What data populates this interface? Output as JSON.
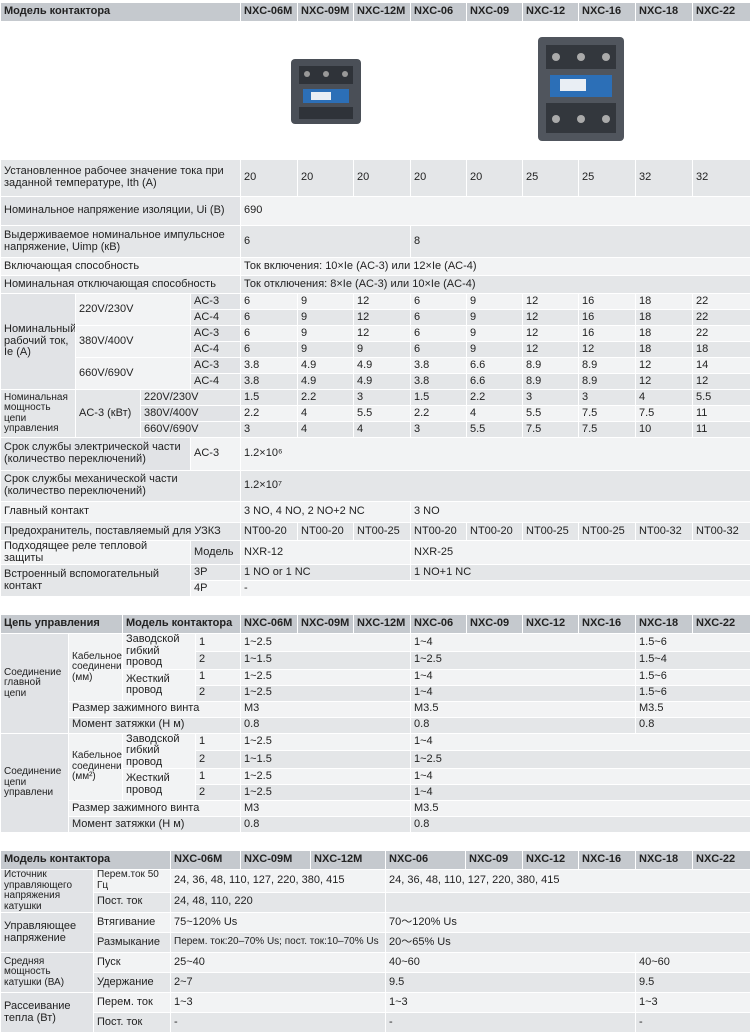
{
  "t1": {
    "header": [
      "Модель контактора",
      "NXC-06M",
      "NXC-09M",
      "NXC-12M",
      "NXC-06",
      "NXC-09",
      "NXC-12",
      "NXC-16",
      "NXC-18",
      "NXC-22"
    ],
    "rows": [
      [
        "Установленное рабочее значение тока при заданной температуре, Ith (A)",
        "20",
        "20",
        "20",
        "20",
        "20",
        "25",
        "25",
        "32",
        "32"
      ],
      [
        "Номинальное напряжение изоляции, Ui (B)",
        "690"
      ],
      [
        "Выдерживаемое номинальное импульсное напряжение, Uimp (кВ)",
        "6",
        "8"
      ],
      [
        "Включающая способность",
        "Ток включения: 10×Ie (AC-3) или 12×Ie (AC-4)"
      ],
      [
        "Номинальная отключающая способность",
        "Ток отключения: 8×Ie (AC-3) или 10×Ie (AC-4)"
      ],
      [
        "Номинальный рабочий ток, Ie (A)",
        "220V/230V",
        "AC-3",
        "6",
        "9",
        "12",
        "6",
        "9",
        "12",
        "16",
        "18",
        "22"
      ],
      [
        "AC-4",
        "6",
        "9",
        "12",
        "6",
        "9",
        "12",
        "16",
        "18",
        "22"
      ],
      [
        "380V/400V",
        "AC-3",
        "6",
        "9",
        "12",
        "6",
        "9",
        "12",
        "16",
        "18",
        "22"
      ],
      [
        "AC-4",
        "6",
        "9",
        "9",
        "6",
        "9",
        "12",
        "12",
        "18",
        "18"
      ],
      [
        "660V/690V",
        "AC-3",
        "3.8",
        "4.9",
        "4.9",
        "3.8",
        "6.6",
        "8.9",
        "8.9",
        "12",
        "14"
      ],
      [
        "AC-4",
        "3.8",
        "4.9",
        "4.9",
        "3.8",
        "6.6",
        "8.9",
        "8.9",
        "12",
        "12"
      ],
      [
        "Номинальная мощность цепи управления",
        "AC-3 (кВт)",
        "220V/230V",
        "1.5",
        "2.2",
        "3",
        "1.5",
        "2.2",
        "3",
        "3",
        "4",
        "5.5"
      ],
      [
        "380V/400V",
        "2.2",
        "4",
        "5.5",
        "2.2",
        "4",
        "5.5",
        "7.5",
        "7.5",
        "11"
      ],
      [
        "660V/690V",
        "3",
        "4",
        "4",
        "3",
        "5.5",
        "7.5",
        "7.5",
        "10",
        "11"
      ],
      [
        "Срок службы электрической части (количество переключений)",
        "AC-3",
        "1.2×10⁶"
      ],
      [
        "Срок службы механической части (количество переключений)",
        "1.2×10⁷"
      ],
      [
        "Главный контакт",
        "3 NO, 4 NO, 2 NO+2 NC",
        "3 NO"
      ],
      [
        "Предохранитель, поставляемый для УЗКЗ",
        "NT00-20",
        "NT00-20",
        "NT00-25",
        "NT00-20",
        "NT00-20",
        "NT00-25",
        "NT00-25",
        "NT00-32",
        "NT00-32"
      ],
      [
        "Подходящее реле тепловой защиты",
        "Модель",
        "NXR-12",
        "NXR-25"
      ],
      [
        "Встроенный вспомогательный контакт",
        "3P",
        "1 NO or 1 NC",
        "1 NO+1 NC"
      ],
      [
        "4P",
        "-"
      ]
    ]
  },
  "t2": {
    "header": [
      "Цепь управления",
      "Модель контактора",
      "NXC-06M",
      "NXC-09M",
      "NXC-12M",
      "NXC-06",
      "NXC-09",
      "NXC-12",
      "NXC-16",
      "NXC-18",
      "NXC-22"
    ],
    "rows": [
      [
        "Соединение главной цепи",
        "Кабельное соединение (мм)",
        "Заводской гибкий провод",
        "1",
        "1~2.5",
        "1~4",
        "1.5~6"
      ],
      [
        "2",
        "1~1.5",
        "1~2.5",
        "1.5~4"
      ],
      [
        "Жесткий провод",
        "1",
        "1~2.5",
        "1~4",
        "1.5~6"
      ],
      [
        "2",
        "1~2.5",
        "1~4",
        "1.5~6"
      ],
      [
        "Размер зажимного винта",
        "M3",
        "M3.5",
        "M3.5"
      ],
      [
        "Момент затяжки (Н м)",
        "0.8",
        "0.8",
        "0.8"
      ],
      [
        "Соединение цепи управлени",
        "Кабельное соединение (мм²)",
        "Заводской гибкий провод",
        "1",
        "1~2.5",
        "1~4"
      ],
      [
        "2",
        "1~1.5",
        "1~2.5"
      ],
      [
        "Жесткий провод",
        "1",
        "1~2.5",
        "1~4"
      ],
      [
        "2",
        "1~2.5",
        "1~4"
      ],
      [
        "Размер зажимного винта",
        "M3",
        "M3.5"
      ],
      [
        "Момент затяжки (Н м)",
        "0.8",
        "0.8"
      ]
    ]
  },
  "t3": {
    "header": [
      "Модель контактора",
      "NXC-06M",
      "NXC-09M",
      "NXC-12M",
      "NXC-06",
      "NXC-09",
      "NXC-12",
      "NXC-16",
      "NXC-18",
      "NXC-22"
    ],
    "rows": [
      [
        "Источник управляющего напряжения катушки",
        "Перем.ток 50 Гц",
        "24, 36, 48, 110, 127, 220, 380, 415",
        "24, 36, 48, 110, 127, 220, 380, 415"
      ],
      [
        "Пост. ток",
        "24, 48, 110, 220"
      ],
      [
        "Управляющее напряжение",
        "Втягивание",
        "75~120% Us",
        "70～120% Us"
      ],
      [
        "Размыкание",
        "Перем. ток:20–70% Us; пост. ток:10–70% Us",
        "20～65% Us"
      ],
      [
        "Средняя мощность катушки (ВА)",
        "Пуск",
        "25~40",
        "40~60",
        "40~60"
      ],
      [
        "Удержание",
        "2~7",
        "9.5",
        "9.5"
      ],
      [
        "Рассеивание тепла (Вт)",
        "Перем. ток",
        "1~3",
        "1~3",
        "1~3"
      ],
      [
        "Пост. ток",
        "-",
        "-",
        "-"
      ]
    ]
  }
}
